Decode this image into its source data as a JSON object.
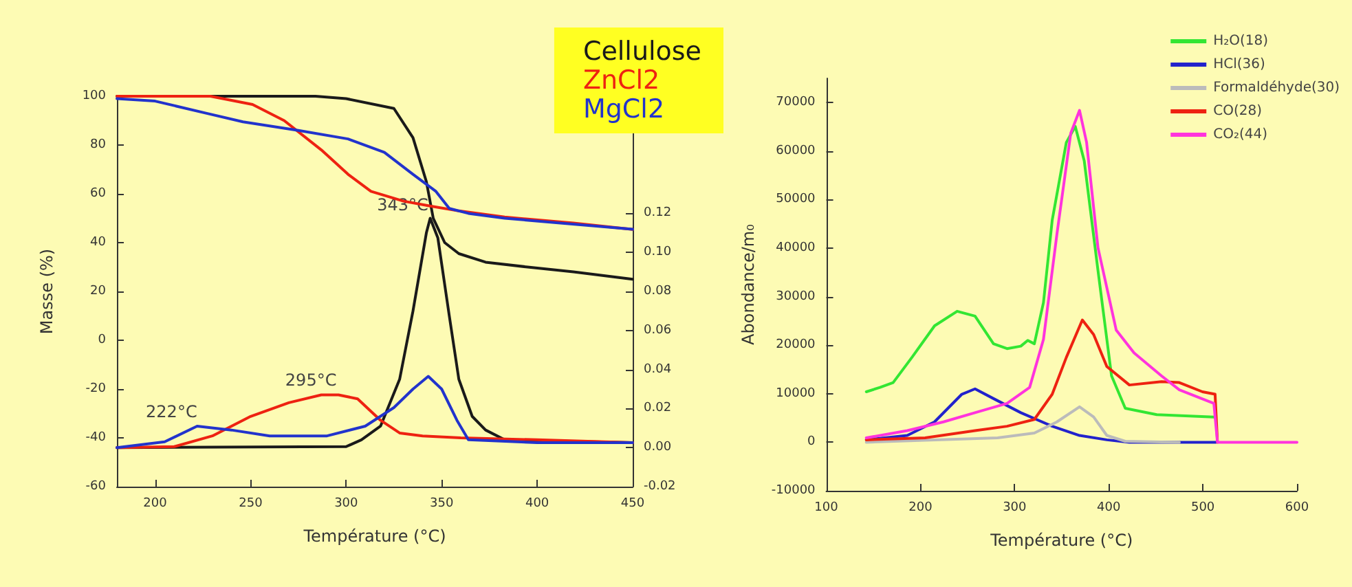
{
  "chart_data": [
    {
      "type": "line",
      "xlabel": "Température (°C)",
      "ylabel": "Masse (%)",
      "xlim": [
        180,
        450
      ],
      "xticks": [
        200,
        250,
        300,
        350,
        400,
        450
      ],
      "ylim": [
        -60,
        100
      ],
      "yticks": [
        -60,
        -40,
        -20,
        0,
        20,
        40,
        60,
        80,
        100
      ],
      "y2lim": [
        -0.02,
        0.18
      ],
      "y2ticks": [
        -0.02,
        {
          "value": 0,
          "label": "0.00"
        },
        0.02,
        0.04,
        0.06,
        0.08,
        {
          "value": 0.1,
          "label": "0.10"
        },
        0.12
      ],
      "grid": false,
      "legend": "top right",
      "marker": "none",
      "series": [
        {
          "name": "Cellulose",
          "color": "#1a1a1a",
          "x": [
            180,
            284,
            300,
            325,
            335,
            342,
            345.6,
            351.6,
            359,
            373,
            395,
            419,
            450
          ],
          "values": [
            100,
            100,
            99,
            95,
            83,
            65,
            50,
            40,
            35.5,
            32,
            30,
            28,
            25
          ]
        },
        {
          "name": "ZnCl2",
          "color": "#ee2211",
          "x": [
            180,
            229,
            251,
            267.6,
            287,
            301,
            313,
            330,
            344,
            359,
            383,
            419,
            450
          ],
          "values": [
            100,
            100,
            96.6,
            90,
            78,
            68,
            61,
            57,
            55,
            53,
            50.5,
            48,
            45.4
          ]
        },
        {
          "name": "MgCl2",
          "color": "#2233cc",
          "x": [
            180,
            200,
            227,
            246,
            275,
            301,
            320,
            335,
            347,
            354,
            364,
            383,
            450
          ],
          "values": [
            99,
            98,
            93,
            89.5,
            86,
            82.5,
            77,
            68,
            61,
            54,
            52,
            50,
            45.5
          ]
        },
        {
          "color": "#1a1a1a",
          "axis": "y2",
          "x": [
            180,
            300,
            308,
            318,
            328,
            335,
            342,
            344,
            348,
            354,
            359,
            366,
            373,
            383,
            450
          ],
          "values": [
            0,
            0.0005,
            0.004,
            0.011,
            0.035,
            0.07,
            0.11,
            0.1175,
            0.1075,
            0.0675,
            0.035,
            0.016,
            0.009,
            0.004,
            0.0025
          ]
        },
        {
          "color": "#ee2211",
          "axis": "y2",
          "x": [
            180,
            210,
            230,
            250,
            270,
            287,
            296,
            306,
            318,
            328,
            340,
            360,
            400,
            450
          ],
          "values": [
            0,
            0.0005,
            0.006,
            0.016,
            0.023,
            0.027,
            0.027,
            0.025,
            0.014,
            0.0075,
            0.006,
            0.005,
            0.004,
            0.0025
          ]
        },
        {
          "color": "#2233cc",
          "axis": "y2",
          "x": [
            180,
            205,
            222,
            240,
            260,
            290,
            310,
            325,
            335,
            343,
            350,
            358,
            364,
            400,
            450
          ],
          "values": [
            0,
            0.003,
            0.011,
            0.009,
            0.006,
            0.006,
            0.011,
            0.0205,
            0.03,
            0.0365,
            0.03,
            0.014,
            0.004,
            0.0025,
            0.0025
          ]
        }
      ],
      "annotations": [
        {
          "text": "343°C",
          "x": 343,
          "y": 50
        },
        {
          "text": "295°C",
          "x": 295,
          "y": -22
        },
        {
          "text": "222°C",
          "x": 222,
          "y": -35
        }
      ]
    },
    {
      "type": "line",
      "xlabel": "Température (°C)",
      "ylabel": "Abondance/m₀",
      "xlim": [
        100,
        600
      ],
      "xticks": [
        100,
        200,
        300,
        400,
        500,
        600
      ],
      "ylim": [
        -10000,
        75000
      ],
      "yticks": [
        -10000,
        0,
        10000,
        20000,
        30000,
        40000,
        50000,
        60000,
        70000
      ],
      "grid": false,
      "legend": "top right",
      "marker": "none",
      "series": [
        {
          "name": "H₂O(18)",
          "color": "#33e633",
          "x": [
            142.5,
            157,
            171,
            191,
            215,
            239,
            258,
            277.6,
            292,
            306.6,
            314,
            321,
            330.7,
            340,
            355,
            364.5,
            374,
            388.6,
            403,
            417.6,
            451,
            511.7
          ],
          "values": [
            10400,
            11300,
            12300,
            17500,
            24000,
            27000,
            26000,
            20300,
            19300,
            19800,
            21000,
            20300,
            28800,
            45800,
            61800,
            65100,
            58000,
            35400,
            13700,
            7000,
            5700,
            5200
          ]
        },
        {
          "name": "HCl(36)",
          "color": "#2222cc",
          "x": [
            142.5,
            186,
            215,
            244,
            258,
            277.6,
            306.6,
            340,
            369,
            398,
            422,
            514
          ],
          "values": [
            500,
            1400,
            4200,
            9900,
            11000,
            9000,
            6100,
            3300,
            1400,
            500,
            0,
            0
          ]
        },
        {
          "name": "Formaldéhyde(30)",
          "color": "#bbbbbb",
          "x": [
            142.5,
            282,
            321,
            345,
            369,
            384,
            398,
            417.6,
            475
          ],
          "values": [
            0,
            900,
            1900,
            4200,
            7300,
            5200,
            1400,
            200,
            0
          ]
        },
        {
          "name": "CO(28)",
          "color": "#ee2211",
          "x": [
            142.5,
            205,
            258,
            292,
            321,
            340,
            355,
            372,
            384,
            398,
            422,
            456,
            475,
            499.6,
            513,
            515.5
          ],
          "values": [
            500,
            900,
            2400,
            3300,
            4700,
            9900,
            17500,
            25200,
            22200,
            15600,
            11800,
            12500,
            12300,
            10400,
            9900,
            0
          ]
        },
        {
          "name": "CO₂(44)",
          "color": "#ff33dd",
          "x": [
            142.5,
            186,
            224.5,
            258,
            292,
            316,
            330.7,
            345,
            359.7,
            369,
            376.5,
            388.6,
            408,
            427,
            456,
            475,
            511.7,
            515.5,
            600
          ],
          "values": [
            900,
            2400,
            4200,
            6100,
            8000,
            11300,
            21200,
            42900,
            63700,
            68400,
            61800,
            40100,
            23100,
            18400,
            13700,
            10800,
            8000,
            0,
            0
          ]
        }
      ]
    }
  ]
}
